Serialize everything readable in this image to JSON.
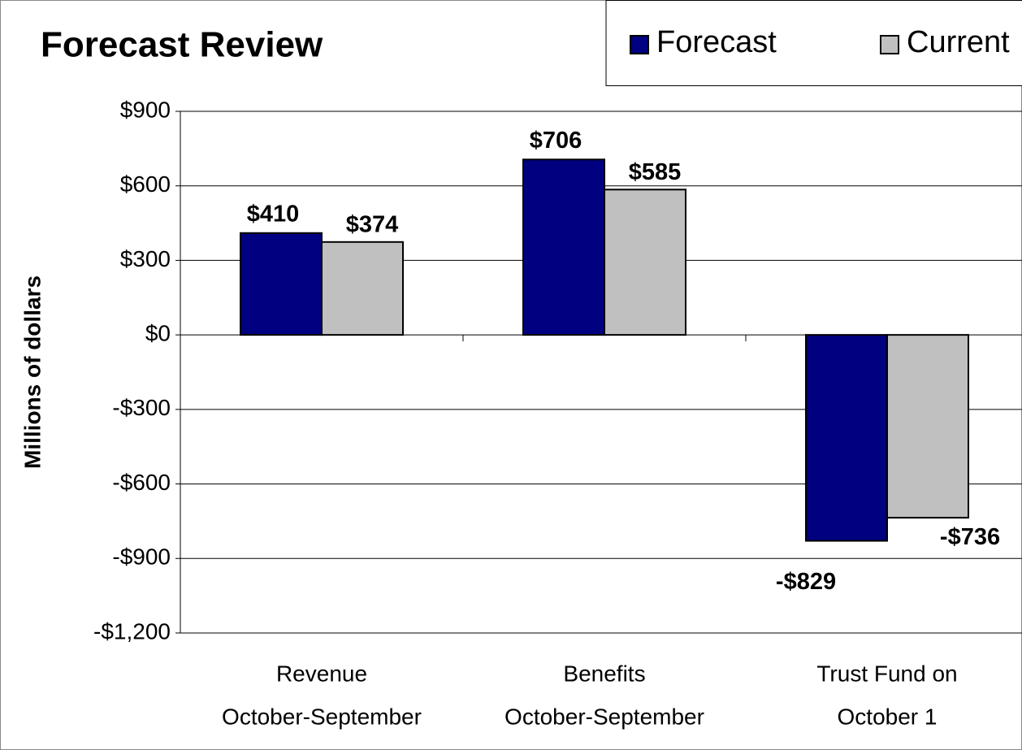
{
  "chart_data": {
    "type": "bar",
    "title": "Forecast Review",
    "y_label": "Millions of dollars",
    "categories": [
      [
        "Revenue",
        "October-September"
      ],
      [
        "Benefits",
        "October-September"
      ],
      [
        "Trust Fund on",
        "October 1"
      ]
    ],
    "series": [
      {
        "name": "Forecast",
        "color": "#000080",
        "values": [
          410,
          706,
          -829
        ],
        "value_labels": [
          "$410",
          "$706",
          "-$829"
        ]
      },
      {
        "name": "Current",
        "color": "#c0c0c0",
        "values": [
          374,
          585,
          -736
        ],
        "value_labels": [
          "$374",
          "$585",
          "-$736"
        ]
      }
    ],
    "ylim": [
      -1200,
      900
    ],
    "yticks": [
      {
        "value": -1200,
        "label": "-$1,200"
      },
      {
        "value": -900,
        "label": "-$900"
      },
      {
        "value": -600,
        "label": "-$600"
      },
      {
        "value": -300,
        "label": "-$300"
      },
      {
        "value": 0,
        "label": "$0"
      },
      {
        "value": 300,
        "label": "$300"
      },
      {
        "value": 600,
        "label": "$600"
      },
      {
        "value": 900,
        "label": "$900"
      }
    ],
    "grid": true,
    "legend": "top-right"
  }
}
